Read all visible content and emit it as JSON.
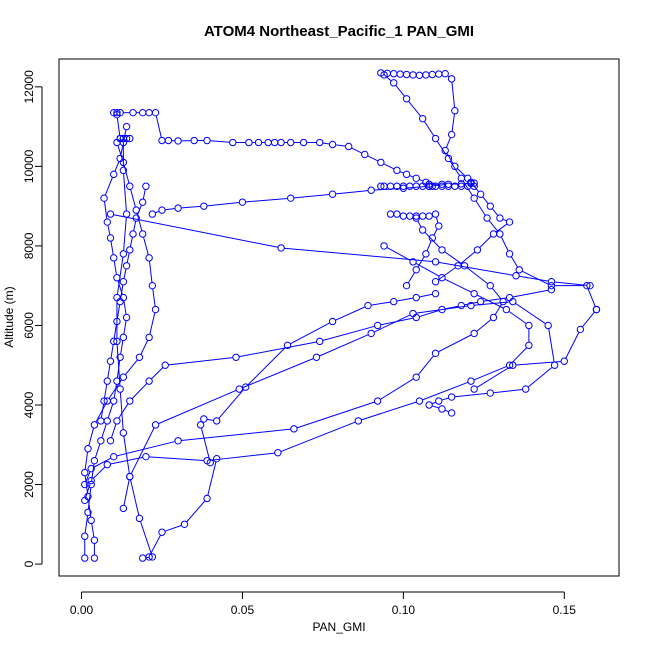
{
  "chart_data": {
    "type": "line",
    "title": "ATOM4 Northeast_Pacific_1 PAN_GMI",
    "xlabel": "PAN_GMI",
    "ylabel": "Altitude (m)",
    "xlim": [
      -0.007,
      0.167
    ],
    "ylim": [
      -300,
      12700
    ],
    "x_ticks": [
      0.0,
      0.05,
      0.1,
      0.15
    ],
    "x_tick_labels": [
      "0.00",
      "0.05",
      "0.10",
      "0.15"
    ],
    "y_ticks": [
      0,
      2000,
      4000,
      6000,
      8000,
      10000,
      12000
    ],
    "y_tick_labels": [
      "0",
      "2000",
      "4000",
      "6000",
      "8000",
      "10000",
      "12000"
    ],
    "color": "#0000ff",
    "markers": "open-circle",
    "grid": false,
    "series": [
      {
        "x": [
          0.019,
          0.022,
          0.018,
          0.015,
          0.013,
          0.012,
          0.011,
          0.011,
          0.013,
          0.014,
          0.013,
          0.013,
          0.012,
          0.012,
          0.013,
          0.015,
          0.014,
          0.012,
          0.011,
          0.011,
          0.01,
          0.012,
          0.016,
          0.019,
          0.021,
          0.023,
          0.025,
          0.027,
          0.03,
          0.035,
          0.039,
          0.047,
          0.052,
          0.055,
          0.058,
          0.06,
          0.062,
          0.065,
          0.069,
          0.074,
          0.078,
          0.083,
          0.088,
          0.093,
          0.098,
          0.101,
          0.104,
          0.107,
          0.108,
          0.112
        ],
        "y": [
          150,
          180,
          1150,
          2200,
          3300,
          4400,
          5600,
          6700,
          7800,
          8800,
          9900,
          10700,
          10700,
          10700,
          10700,
          10700,
          10700,
          10700,
          11300,
          11350,
          11350,
          11350,
          11350,
          11350,
          11350,
          11350,
          10650,
          10650,
          10640,
          10650,
          10650,
          10600,
          10600,
          10600,
          10600,
          10600,
          10600,
          10600,
          10600,
          10600,
          10550,
          10500,
          10300,
          10100,
          9900,
          9800,
          9700,
          9600,
          9550,
          9550
        ]
      },
      {
        "x": [
          0.001,
          0.001,
          0.002,
          0.003,
          0.004,
          0.006,
          0.008,
          0.01,
          0.011,
          0.012,
          0.013,
          0.014,
          0.013,
          0.011,
          0.01,
          0.009,
          0.008,
          0.007,
          0.01,
          0.012,
          0.013,
          0.014
        ],
        "y": [
          150,
          700,
          1300,
          2000,
          2600,
          3100,
          3600,
          4100,
          4600,
          5200,
          5700,
          6200,
          6700,
          7200,
          7700,
          8200,
          8600,
          9200,
          9800,
          10200,
          10600,
          11000
        ]
      },
      {
        "x": [
          0.004,
          0.004,
          0.003,
          0.002,
          0.001,
          0.002,
          0.004,
          0.008,
          0.013,
          0.018,
          0.021,
          0.023,
          0.022,
          0.021,
          0.019,
          0.017,
          0.015,
          0.013,
          0.011
        ],
        "y": [
          150,
          600,
          1100,
          1700,
          2300,
          2900,
          3500,
          4100,
          4700,
          5200,
          5700,
          6400,
          7000,
          7700,
          8300,
          8900,
          9500,
          10100,
          10600
        ]
      },
      {
        "x": [
          0.021,
          0.025,
          0.032,
          0.039,
          0.042,
          0.04,
          0.037,
          0.038,
          0.042,
          0.051,
          0.064,
          0.078,
          0.089,
          0.097,
          0.104,
          0.11
        ],
        "y": [
          180,
          800,
          1000,
          1650,
          2650,
          2550,
          3500,
          3650,
          3600,
          4450,
          5500,
          6100,
          6500,
          6600,
          6700,
          6800
        ]
      },
      {
        "x": [
          0.013,
          0.015,
          0.023,
          0.049,
          0.073,
          0.09,
          0.103,
          0.121,
          0.134,
          0.145,
          0.147,
          0.138,
          0.127,
          0.115,
          0.111,
          0.108,
          0.112,
          0.115
        ],
        "y": [
          1400,
          2200,
          3500,
          4400,
          5200,
          5800,
          6300,
          6500,
          6600,
          6000,
          5000,
          4400,
          4300,
          4200,
          4100,
          4000,
          3900,
          3800
        ]
      },
      {
        "x": [
          0.001,
          0.003,
          0.01,
          0.03,
          0.066,
          0.092,
          0.104,
          0.11,
          0.122,
          0.128,
          0.131,
          0.127,
          0.119,
          0.112,
          0.106,
          0.104
        ],
        "y": [
          2000,
          2400,
          2700,
          3100,
          3400,
          4100,
          4700,
          5300,
          5800,
          6200,
          6600,
          7000,
          7500,
          7900,
          8400,
          8700
        ]
      },
      {
        "x": [
          0.02,
          0.019,
          0.017,
          0.016,
          0.015,
          0.014,
          0.013,
          0.012,
          0.011,
          0.01,
          0.009,
          0.008,
          0.007,
          0.006
        ],
        "y": [
          9500,
          9100,
          8700,
          8300,
          7900,
          7500,
          7100,
          6600,
          6100,
          5600,
          5100,
          4600,
          4100,
          3600
        ]
      },
      {
        "x": [
          0.009,
          0.011,
          0.015,
          0.021,
          0.026,
          0.048,
          0.074,
          0.092,
          0.104,
          0.112,
          0.118,
          0.124,
          0.133,
          0.146
        ],
        "y": [
          3100,
          3600,
          4100,
          4600,
          5000,
          5200,
          5600,
          6000,
          6200,
          6400,
          6500,
          6600,
          6700,
          6900
        ]
      },
      {
        "x": [
          0.001,
          0.003,
          0.008,
          0.02,
          0.039,
          0.061,
          0.086,
          0.105,
          0.121,
          0.133,
          0.139,
          0.139,
          0.132,
          0.122,
          0.112,
          0.103,
          0.094
        ],
        "y": [
          1600,
          2100,
          2500,
          2700,
          2600,
          2800,
          3600,
          4100,
          4600,
          5000,
          5500,
          6000,
          6400,
          6800,
          7200,
          7600,
          8000
        ]
      },
      {
        "x": [
          0.022,
          0.025,
          0.03,
          0.038,
          0.05,
          0.065,
          0.078,
          0.09,
          0.1,
          0.108,
          0.114,
          0.118,
          0.121,
          0.122,
          0.121
        ],
        "y": [
          8800,
          8900,
          8950,
          9000,
          9100,
          9200,
          9300,
          9400,
          9450,
          9500,
          9550,
          9560,
          9570,
          9580,
          9600
        ]
      },
      {
        "x": [
          0.093,
          0.094,
          0.096,
          0.098,
          0.1,
          0.102,
          0.104,
          0.106,
          0.108,
          0.109,
          0.11,
          0.112,
          0.114,
          0.116,
          0.118,
          0.12,
          0.122
        ],
        "y": [
          9500,
          9500,
          9500,
          9500,
          9500,
          9500,
          9500,
          9500,
          9500,
          9500,
          9500,
          9500,
          9500,
          9500,
          9500,
          9500,
          9500
        ]
      },
      {
        "x": [
          0.096,
          0.098,
          0.1,
          0.102,
          0.104,
          0.106,
          0.108,
          0.11,
          0.111,
          0.109,
          0.107,
          0.104,
          0.101
        ],
        "y": [
          8800,
          8800,
          8750,
          8750,
          8750,
          8750,
          8750,
          8800,
          8500,
          8200,
          7800,
          7400,
          7000
        ]
      },
      {
        "x": [
          0.093,
          0.095,
          0.097,
          0.099,
          0.101,
          0.103,
          0.105,
          0.107,
          0.109,
          0.111,
          0.113,
          0.115,
          0.116,
          0.115,
          0.113,
          0.116,
          0.12,
          0.124,
          0.127,
          0.13,
          0.133,
          0.128,
          0.123,
          0.117,
          0.11
        ],
        "y": [
          12350,
          12340,
          12330,
          12320,
          12310,
          12300,
          12290,
          12300,
          12310,
          12320,
          12330,
          12200,
          11400,
          10800,
          10400,
          10000,
          9700,
          9300,
          9000,
          8700,
          8600,
          8300,
          7900,
          7500,
          7100
        ]
      },
      {
        "x": [
          0.094,
          0.097,
          0.101,
          0.106,
          0.11,
          0.114,
          0.118,
          0.122,
          0.126,
          0.13,
          0.133,
          0.136,
          0.146,
          0.157,
          0.16
        ],
        "y": [
          12300,
          12100,
          11700,
          11200,
          10700,
          10200,
          9700,
          9200,
          8700,
          8300,
          7800,
          7400,
          7000,
          7000,
          6400
        ]
      },
      {
        "x": [
          0.16,
          0.155,
          0.15,
          0.134,
          0.122
        ],
        "y": [
          6400,
          5900,
          5100,
          5000,
          4400
        ]
      },
      {
        "x": [
          0.009,
          0.062,
          0.11,
          0.135,
          0.146,
          0.158
        ],
        "y": [
          8800,
          7950,
          7600,
          7250,
          7100,
          7000
        ]
      }
    ]
  }
}
